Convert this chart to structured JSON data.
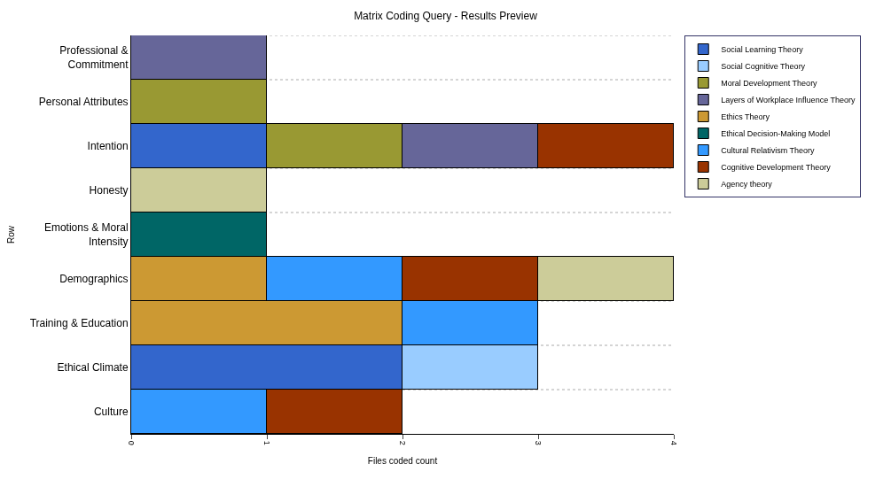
{
  "chart_data": {
    "type": "bar",
    "orientation": "horizontal",
    "stacked": true,
    "title": "Matrix Coding Query - Results Preview",
    "xlabel": "Files coded count",
    "ylabel": "Row",
    "categories": [
      "Professional & Commitment",
      "Personal Attributes",
      "Intention",
      "Honesty",
      "Emotions & Moral Intensity",
      "Demographics",
      "Training & Education",
      "Ethical Climate",
      "Culture"
    ],
    "series": [
      {
        "name": "Social Learning Theory",
        "color": "#3366cc",
        "values": [
          null,
          null,
          1,
          null,
          null,
          null,
          null,
          2,
          null
        ]
      },
      {
        "name": "Social Cognitive Theory",
        "color": "#99ccff",
        "values": [
          null,
          null,
          null,
          null,
          null,
          null,
          null,
          1,
          null
        ]
      },
      {
        "name": "Moral Development Theory",
        "color": "#999933",
        "values": [
          null,
          1,
          1,
          null,
          null,
          null,
          null,
          null,
          null
        ]
      },
      {
        "name": "Layers of Workplace Influence Theory",
        "color": "#666699",
        "values": [
          1,
          null,
          1,
          null,
          null,
          null,
          null,
          null,
          null
        ]
      },
      {
        "name": "Ethics Theory",
        "color": "#cc9933",
        "values": [
          null,
          null,
          null,
          null,
          null,
          1,
          2,
          null,
          null
        ]
      },
      {
        "name": "Ethical Decision-Making Model",
        "color": "#006666",
        "values": [
          null,
          null,
          null,
          null,
          1,
          null,
          null,
          null,
          null
        ]
      },
      {
        "name": "Cultural Relativism Theory",
        "color": "#3399ff",
        "values": [
          null,
          null,
          null,
          null,
          null,
          1,
          1,
          null,
          1
        ]
      },
      {
        "name": "Cognitive Development Theory",
        "color": "#993300",
        "values": [
          null,
          null,
          1,
          null,
          null,
          1,
          null,
          null,
          1
        ]
      },
      {
        "name": "Agency theory",
        "color": "#cccc99",
        "values": [
          null,
          null,
          null,
          1,
          null,
          1,
          null,
          null,
          null
        ]
      }
    ],
    "xlim": [
      0,
      4
    ],
    "xticks": [
      0,
      1,
      2,
      3,
      4
    ],
    "grid": "y",
    "legend": "right"
  }
}
